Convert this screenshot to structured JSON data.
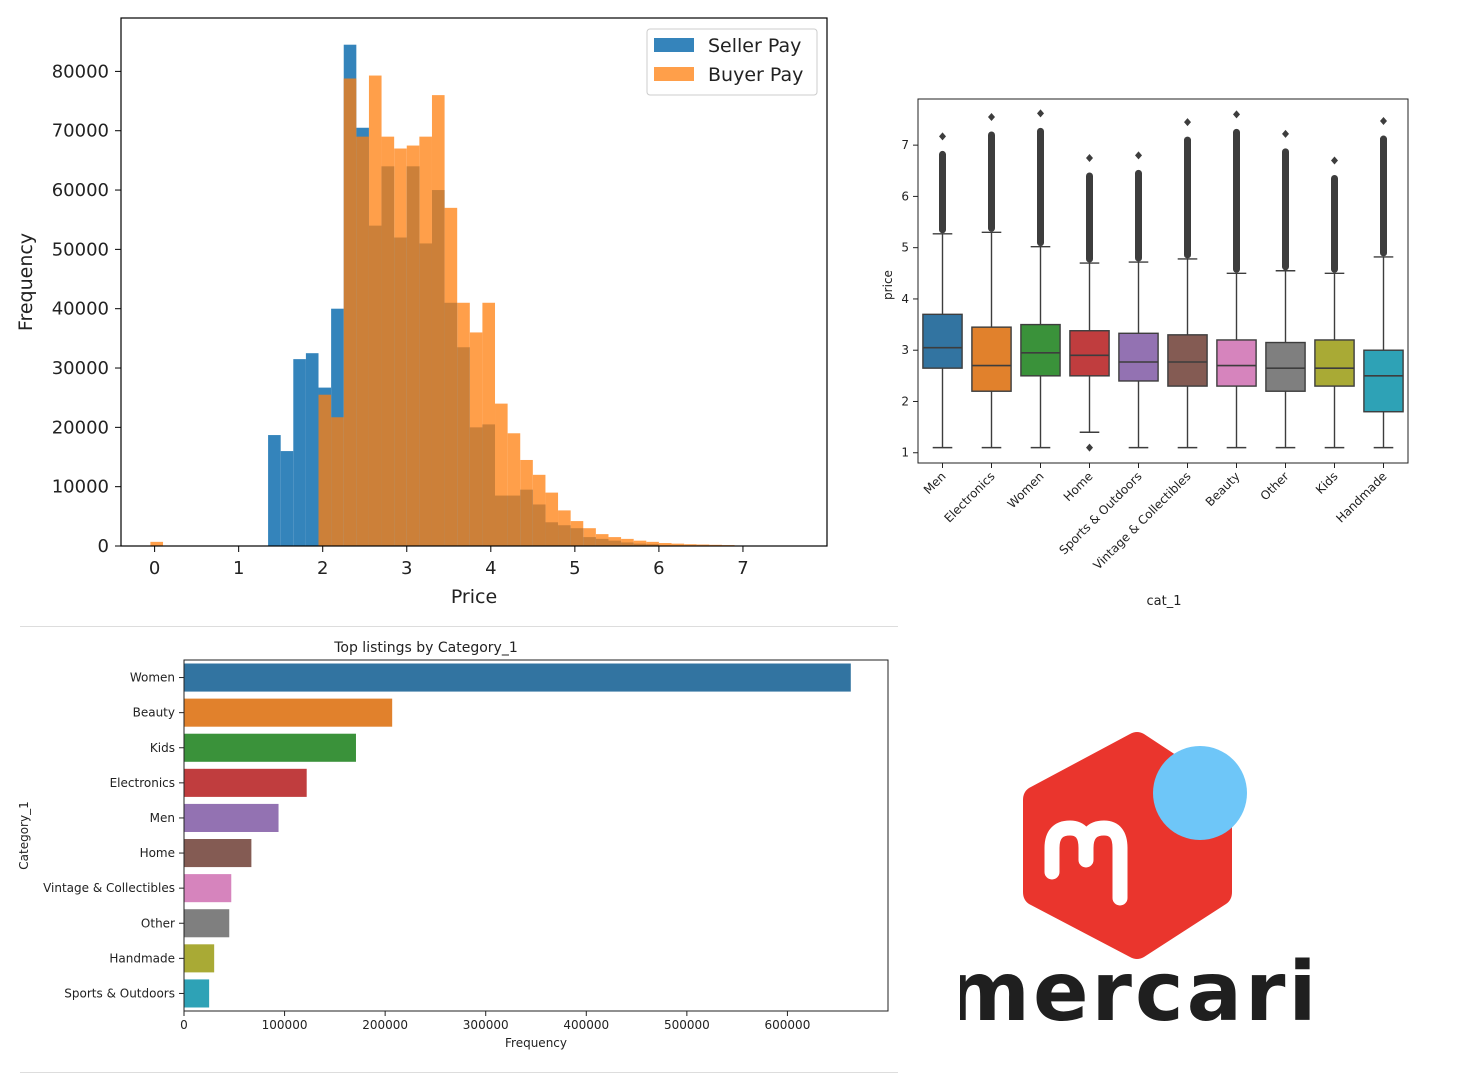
{
  "chart_data": [
    {
      "type": "bar",
      "subtype": "histogram",
      "xlabel": "Price",
      "ylabel": "Frequency",
      "xlim": [
        -0.4,
        8.0
      ],
      "ylim": [
        0,
        89000
      ],
      "xticks": [
        0,
        1,
        2,
        3,
        4,
        5,
        6,
        7
      ],
      "yticks": [
        0,
        10000,
        20000,
        30000,
        40000,
        50000,
        60000,
        70000,
        80000
      ],
      "bin_width": 0.15,
      "legend_position": "top-right",
      "series": [
        {
          "name": "Seller Pay",
          "color": "#1f77b4",
          "bins": [
            [
              1.35,
              18700
            ],
            [
              1.5,
              16000
            ],
            [
              1.65,
              31500
            ],
            [
              1.8,
              32500
            ],
            [
              1.95,
              26700
            ],
            [
              2.1,
              40000
            ],
            [
              2.25,
              84500
            ],
            [
              2.4,
              70500
            ],
            [
              2.55,
              54000
            ],
            [
              2.7,
              64000
            ],
            [
              2.85,
              52000
            ],
            [
              3.0,
              64000
            ],
            [
              3.15,
              51000
            ],
            [
              3.3,
              60000
            ],
            [
              3.45,
              41000
            ],
            [
              3.6,
              33500
            ],
            [
              3.75,
              20000
            ],
            [
              3.9,
              20500
            ],
            [
              4.05,
              8500
            ],
            [
              4.2,
              8500
            ],
            [
              4.35,
              9500
            ],
            [
              4.5,
              7000
            ],
            [
              4.65,
              4000
            ],
            [
              4.8,
              3500
            ],
            [
              4.95,
              3000
            ],
            [
              5.1,
              1500
            ],
            [
              5.25,
              1200
            ],
            [
              5.4,
              900
            ],
            [
              5.55,
              600
            ],
            [
              5.7,
              400
            ],
            [
              5.85,
              300
            ]
          ]
        },
        {
          "name": "Buyer Pay",
          "color": "#ff7f0e",
          "bins": [
            [
              -0.05,
              700
            ],
            [
              1.95,
              25500
            ],
            [
              2.1,
              21700
            ],
            [
              2.25,
              78800
            ],
            [
              2.4,
              69000
            ],
            [
              2.55,
              79300
            ],
            [
              2.7,
              69000
            ],
            [
              2.85,
              67000
            ],
            [
              3.0,
              67500
            ],
            [
              3.15,
              69000
            ],
            [
              3.3,
              76000
            ],
            [
              3.45,
              57000
            ],
            [
              3.6,
              41000
            ],
            [
              3.75,
              36000
            ],
            [
              3.9,
              41000
            ],
            [
              4.05,
              24000
            ],
            [
              4.2,
              19000
            ],
            [
              4.35,
              14500
            ],
            [
              4.5,
              12000
            ],
            [
              4.65,
              9000
            ],
            [
              4.8,
              6000
            ],
            [
              4.95,
              4200
            ],
            [
              5.1,
              3000
            ],
            [
              5.25,
              2000
            ],
            [
              5.4,
              1500
            ],
            [
              5.55,
              1200
            ],
            [
              5.7,
              900
            ],
            [
              5.85,
              700
            ],
            [
              6.0,
              500
            ],
            [
              6.15,
              400
            ],
            [
              6.3,
              300
            ],
            [
              6.45,
              250
            ],
            [
              6.6,
              200
            ],
            [
              6.75,
              150
            ]
          ]
        }
      ]
    },
    {
      "type": "box",
      "xlabel": "cat_1",
      "ylabel": "price",
      "ylim": [
        0.8,
        7.9
      ],
      "yticks": [
        1,
        2,
        3,
        4,
        5,
        6,
        7
      ],
      "categories": [
        "Men",
        "Electronics",
        "Women",
        "Home",
        "Sports & Outdoors",
        "Vintage & Collectibles",
        "Beauty",
        "Other",
        "Kids",
        "Handmade"
      ],
      "boxes": [
        {
          "q1": 2.65,
          "median": 3.05,
          "q3": 3.7,
          "whisker_low": 1.1,
          "whisker_high": 5.27,
          "outlier_max": 7.17,
          "outlier_min": null,
          "color": "#3274a1"
        },
        {
          "q1": 2.2,
          "median": 2.7,
          "q3": 3.45,
          "whisker_low": 1.1,
          "whisker_high": 5.3,
          "outlier_max": 7.55,
          "outlier_min": null,
          "color": "#e1812c"
        },
        {
          "q1": 2.5,
          "median": 2.95,
          "q3": 3.5,
          "whisker_low": 1.1,
          "whisker_high": 5.02,
          "outlier_max": 7.62,
          "outlier_min": null,
          "color": "#3a923a"
        },
        {
          "q1": 2.5,
          "median": 2.9,
          "q3": 3.38,
          "whisker_low": 1.4,
          "whisker_high": 4.7,
          "outlier_max": 6.75,
          "outlier_min": 1.1,
          "color": "#c03d3e"
        },
        {
          "q1": 2.4,
          "median": 2.77,
          "q3": 3.33,
          "whisker_low": 1.1,
          "whisker_high": 4.72,
          "outlier_max": 6.8,
          "outlier_min": null,
          "color": "#9372b2"
        },
        {
          "q1": 2.3,
          "median": 2.77,
          "q3": 3.3,
          "whisker_low": 1.1,
          "whisker_high": 4.78,
          "outlier_max": 7.45,
          "outlier_min": null,
          "color": "#845b53"
        },
        {
          "q1": 2.3,
          "median": 2.7,
          "q3": 3.2,
          "whisker_low": 1.1,
          "whisker_high": 4.5,
          "outlier_max": 7.6,
          "outlier_min": null,
          "color": "#d684bd"
        },
        {
          "q1": 2.2,
          "median": 2.65,
          "q3": 3.15,
          "whisker_low": 1.1,
          "whisker_high": 4.55,
          "outlier_max": 7.22,
          "outlier_min": null,
          "color": "#7f7f7f"
        },
        {
          "q1": 2.3,
          "median": 2.65,
          "q3": 3.2,
          "whisker_low": 1.1,
          "whisker_high": 4.5,
          "outlier_max": 6.7,
          "outlier_min": null,
          "color": "#a9aa35"
        },
        {
          "q1": 1.8,
          "median": 2.5,
          "q3": 3.0,
          "whisker_low": 1.1,
          "whisker_high": 4.82,
          "outlier_max": 7.47,
          "outlier_min": null,
          "color": "#2ea2b6"
        }
      ]
    },
    {
      "type": "bar",
      "orientation": "horizontal",
      "title": "Top listings by Category_1",
      "xlabel": "Frequency",
      "ylabel": "Category_1",
      "xlim": [
        0,
        700000
      ],
      "xticks": [
        0,
        100000,
        200000,
        300000,
        400000,
        500000,
        600000
      ],
      "categories": [
        "Women",
        "Beauty",
        "Kids",
        "Electronics",
        "Men",
        "Home",
        "Vintage & Collectibles",
        "Other",
        "Handmade",
        "Sports & Outdoors"
      ],
      "values": [
        663000,
        207000,
        171000,
        122000,
        94000,
        67000,
        47000,
        45000,
        30000,
        25000
      ],
      "colors": [
        "#3274a1",
        "#e1812c",
        "#3a923a",
        "#c03d3e",
        "#9372b2",
        "#845b53",
        "#d684bd",
        "#7f7f7f",
        "#a9aa35",
        "#2ea2b6"
      ]
    }
  ],
  "logo": {
    "name": "mercari-logo",
    "wordmark": "mercari",
    "cube_color": "#ea352d",
    "dot_color": "#6ec6f8",
    "text_color": "#1f1f1f"
  }
}
